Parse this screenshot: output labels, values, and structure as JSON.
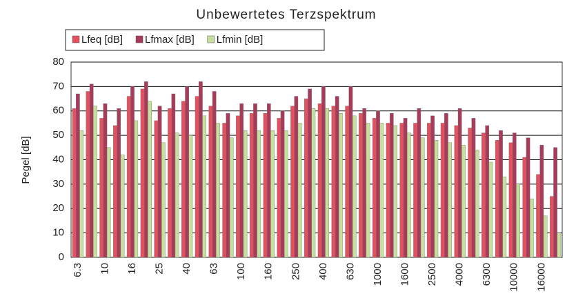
{
  "chart_data": {
    "type": "bar",
    "title": "Unbewertetes Terzspektrum",
    "ylabel": "Pegel [dB]",
    "categories": [
      "6.3",
      null,
      "10",
      null,
      "16",
      null,
      "25",
      null,
      "40",
      null,
      "63",
      null,
      "100",
      null,
      "160",
      null,
      "250",
      null,
      "400",
      null,
      "630",
      null,
      "1000",
      null,
      "1600",
      null,
      "2500",
      null,
      "4000",
      null,
      "6300",
      null,
      "10000",
      null,
      "16000",
      null
    ],
    "series": [
      {
        "name": "Lfeq [dB]",
        "color": "#e4505e",
        "values": [
          61,
          68,
          57,
          54,
          66,
          69,
          56,
          61,
          64,
          66,
          62,
          55,
          58,
          59,
          59,
          57,
          62,
          65,
          63,
          62,
          62,
          59,
          57,
          55,
          55,
          55,
          55,
          55,
          54,
          53,
          51,
          48,
          47,
          41,
          34,
          25
        ]
      },
      {
        "name": "Lfmax [dB]",
        "color": "#a83a5a",
        "values": [
          67,
          71,
          63,
          61,
          70,
          72,
          62,
          67,
          70,
          72,
          68,
          59,
          63,
          63,
          63,
          60,
          66,
          69,
          70,
          66,
          70,
          61,
          60,
          59,
          57,
          61,
          58,
          59,
          61,
          57,
          54,
          52,
          51,
          49,
          46,
          45
        ]
      },
      {
        "name": "Lfmin [dB]",
        "color": "#c6df9c",
        "values": [
          52,
          62,
          45,
          42,
          56,
          64,
          47,
          51,
          50,
          58,
          55,
          49,
          52,
          52,
          52,
          52,
          55,
          61,
          61,
          59,
          58,
          55,
          55,
          54,
          51,
          49,
          48,
          47,
          46,
          44,
          39,
          33,
          30,
          24,
          17,
          10
        ]
      }
    ],
    "ylim": [
      0,
      80
    ],
    "yticks": [
      0,
      10,
      20,
      30,
      40,
      50,
      60,
      70,
      80
    ],
    "grid": true,
    "legend": "top"
  }
}
